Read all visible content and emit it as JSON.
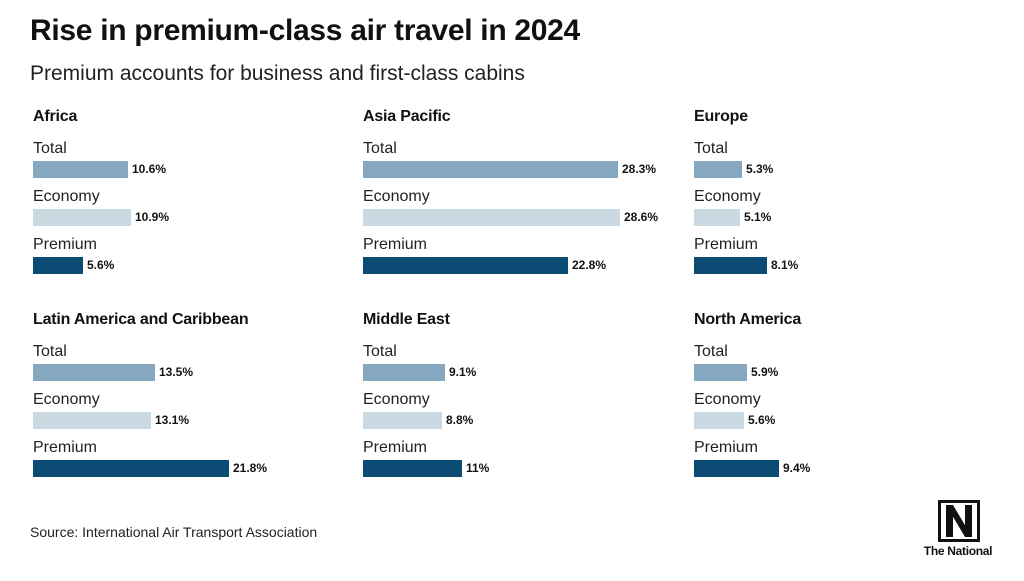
{
  "title": "Rise in premium-class air travel in 2024",
  "subtitle": "Premium accounts for business and first-class cabins",
  "source": "Source: International Air Transport Association",
  "logo": {
    "text": "The National"
  },
  "colors": {
    "Total": "#86a7c0",
    "Economy": "#cbd9e3",
    "Premium": "#0b4b74"
  },
  "chart_data": {
    "type": "bar",
    "orientation": "horizontal",
    "unit": "%",
    "xlim": [
      0,
      30
    ],
    "categories": [
      "Total",
      "Economy",
      "Premium"
    ],
    "panels": [
      {
        "region": "Africa",
        "values": [
          10.6,
          10.9,
          5.6
        ],
        "labels": [
          "10.6%",
          "10.9%",
          "5.6%"
        ]
      },
      {
        "region": "Asia Pacific",
        "values": [
          28.3,
          28.6,
          22.8
        ],
        "labels": [
          "28.3%",
          "28.6%",
          "22.8%"
        ]
      },
      {
        "region": "Europe",
        "values": [
          5.3,
          5.1,
          8.1
        ],
        "labels": [
          "5.3%",
          "5.1%",
          "8.1%"
        ]
      },
      {
        "region": "Latin America and Caribbean",
        "values": [
          13.5,
          13.1,
          21.8
        ],
        "labels": [
          "13.5%",
          "13.1%",
          "21.8%"
        ]
      },
      {
        "region": "Middle East",
        "values": [
          9.1,
          8.8,
          11
        ],
        "labels": [
          "9.1%",
          "8.8%",
          "11%"
        ]
      },
      {
        "region": "North America",
        "values": [
          5.9,
          5.6,
          9.4
        ],
        "labels": [
          "5.9%",
          "5.6%",
          "9.4%"
        ]
      }
    ]
  }
}
